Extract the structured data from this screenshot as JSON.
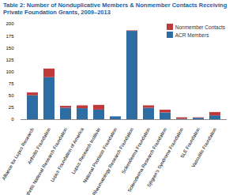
{
  "chart_data": {
    "type": "bar",
    "stacked": true,
    "title": "Table 2: Number of Nonduplicative Members & Nonmember Contacts Receiving Private Foundation Grants, 2009–2013",
    "categories": [
      "Alliance for Lupus Research",
      "Arthritis Foundation",
      "Arthritis National Research Foundation",
      "Lupus Foundation of America",
      "Lupus Research Institute",
      "National Psoriasis Foundation",
      "Rheumatology Research Foundation",
      "Scleroderma Foundation",
      "Scleroderma Research Foundation",
      "Sjögren's Syndrome Foundation",
      "SLE Foundation",
      "Vasculitis Foundation"
    ],
    "series": [
      {
        "name": "ACR Members",
        "color": "#2e6da4",
        "values": [
          50,
          88,
          24,
          23,
          20,
          6,
          185,
          24,
          14,
          1,
          3,
          8
        ]
      },
      {
        "name": "Nonmember Contacts",
        "color": "#c0393b",
        "values": [
          6,
          18,
          4,
          6,
          10,
          0,
          1,
          5,
          6,
          3,
          1,
          7
        ]
      }
    ],
    "ylim": [
      0,
      200
    ],
    "yticks": [
      0,
      25,
      50,
      75,
      100,
      125,
      150,
      175,
      200
    ],
    "grid": false,
    "legend": "top-right"
  }
}
